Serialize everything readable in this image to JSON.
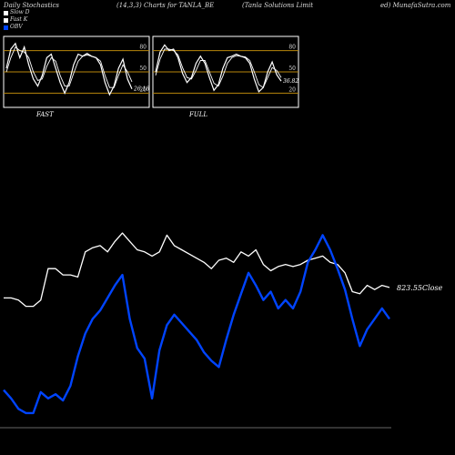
{
  "header": {
    "left": "Daily Stochastics",
    "params": "(14,3,3) Charts for TANLA_BE",
    "company": "(Tanla  Solutions Limit",
    "right": "ed) MunafaSutra.com"
  },
  "legend": {
    "items": [
      {
        "label": "Slow  D",
        "color": "#ffffff"
      },
      {
        "label": "Fast K",
        "color": "#ffffff"
      },
      {
        "label": "OBV",
        "color": "#0044ff"
      }
    ]
  },
  "chart_data": [
    {
      "type": "line",
      "panel": "FAST",
      "title": "FAST",
      "ylim": [
        0,
        100
      ],
      "levels": [
        80,
        50,
        20
      ],
      "ytick_labels": [
        "80",
        "50",
        "20"
      ],
      "last_label": "26.18",
      "series": [
        {
          "name": "Fast K",
          "color": "#ffffff",
          "values": [
            55,
            82,
            90,
            70,
            85,
            60,
            40,
            30,
            45,
            70,
            75,
            55,
            35,
            20,
            35,
            60,
            75,
            72,
            76,
            72,
            70,
            60,
            35,
            18,
            30,
            55,
            68,
            40,
            26
          ]
        },
        {
          "name": "Slow D",
          "color": "#ffffff",
          "values": [
            50,
            70,
            85,
            80,
            78,
            70,
            50,
            38,
            40,
            58,
            70,
            65,
            45,
            30,
            30,
            48,
            65,
            72,
            74,
            72,
            70,
            65,
            45,
            28,
            28,
            45,
            60,
            50,
            36
          ]
        }
      ]
    },
    {
      "type": "line",
      "panel": "FULL",
      "title": "FULL",
      "ylim": [
        0,
        100
      ],
      "levels": [
        80,
        50,
        20
      ],
      "ytick_labels": [
        "80",
        "50",
        "20"
      ],
      "last_label": "36.82",
      "series": [
        {
          "name": "Full K",
          "color": "#ffffff",
          "values": [
            50,
            78,
            88,
            80,
            82,
            70,
            48,
            35,
            42,
            62,
            72,
            62,
            42,
            24,
            32,
            55,
            70,
            72,
            75,
            72,
            70,
            62,
            40,
            22,
            28,
            50,
            64,
            46,
            37
          ]
        },
        {
          "name": "Full D",
          "color": "#ffffff",
          "values": [
            45,
            68,
            82,
            82,
            80,
            74,
            56,
            42,
            40,
            52,
            66,
            66,
            50,
            34,
            30,
            44,
            62,
            70,
            73,
            72,
            71,
            66,
            50,
            32,
            28,
            42,
            56,
            52,
            42
          ]
        }
      ]
    },
    {
      "type": "line",
      "panel": "main",
      "price_label": "823.55",
      "price_label_suffix": "Close",
      "series": [
        {
          "name": "Close",
          "color": "#ffffff",
          "values": [
            62,
            62,
            61,
            58,
            58,
            61,
            76,
            76,
            73,
            73,
            72,
            84,
            86,
            87,
            84,
            89,
            93,
            89,
            85,
            84,
            82,
            84,
            92,
            87,
            85,
            83,
            81,
            79,
            76,
            80,
            81,
            79,
            84,
            82,
            85,
            78,
            75,
            77,
            78,
            77,
            78,
            80,
            81,
            82,
            79,
            78,
            74,
            65,
            64,
            68,
            66,
            68,
            67
          ]
        },
        {
          "name": "OBV",
          "color": "#0044ff",
          "values": [
            18,
            14,
            9,
            7,
            7,
            17,
            14,
            16,
            13,
            20,
            34,
            45,
            52,
            56,
            62,
            68,
            73,
            52,
            38,
            33,
            14,
            37,
            49,
            54,
            50,
            46,
            42,
            36,
            32,
            29,
            42,
            54,
            64,
            74,
            68,
            61,
            65,
            57,
            61,
            57,
            65,
            79,
            85,
            92,
            85,
            76,
            66,
            52,
            39,
            47,
            52,
            57,
            52
          ]
        }
      ]
    }
  ]
}
